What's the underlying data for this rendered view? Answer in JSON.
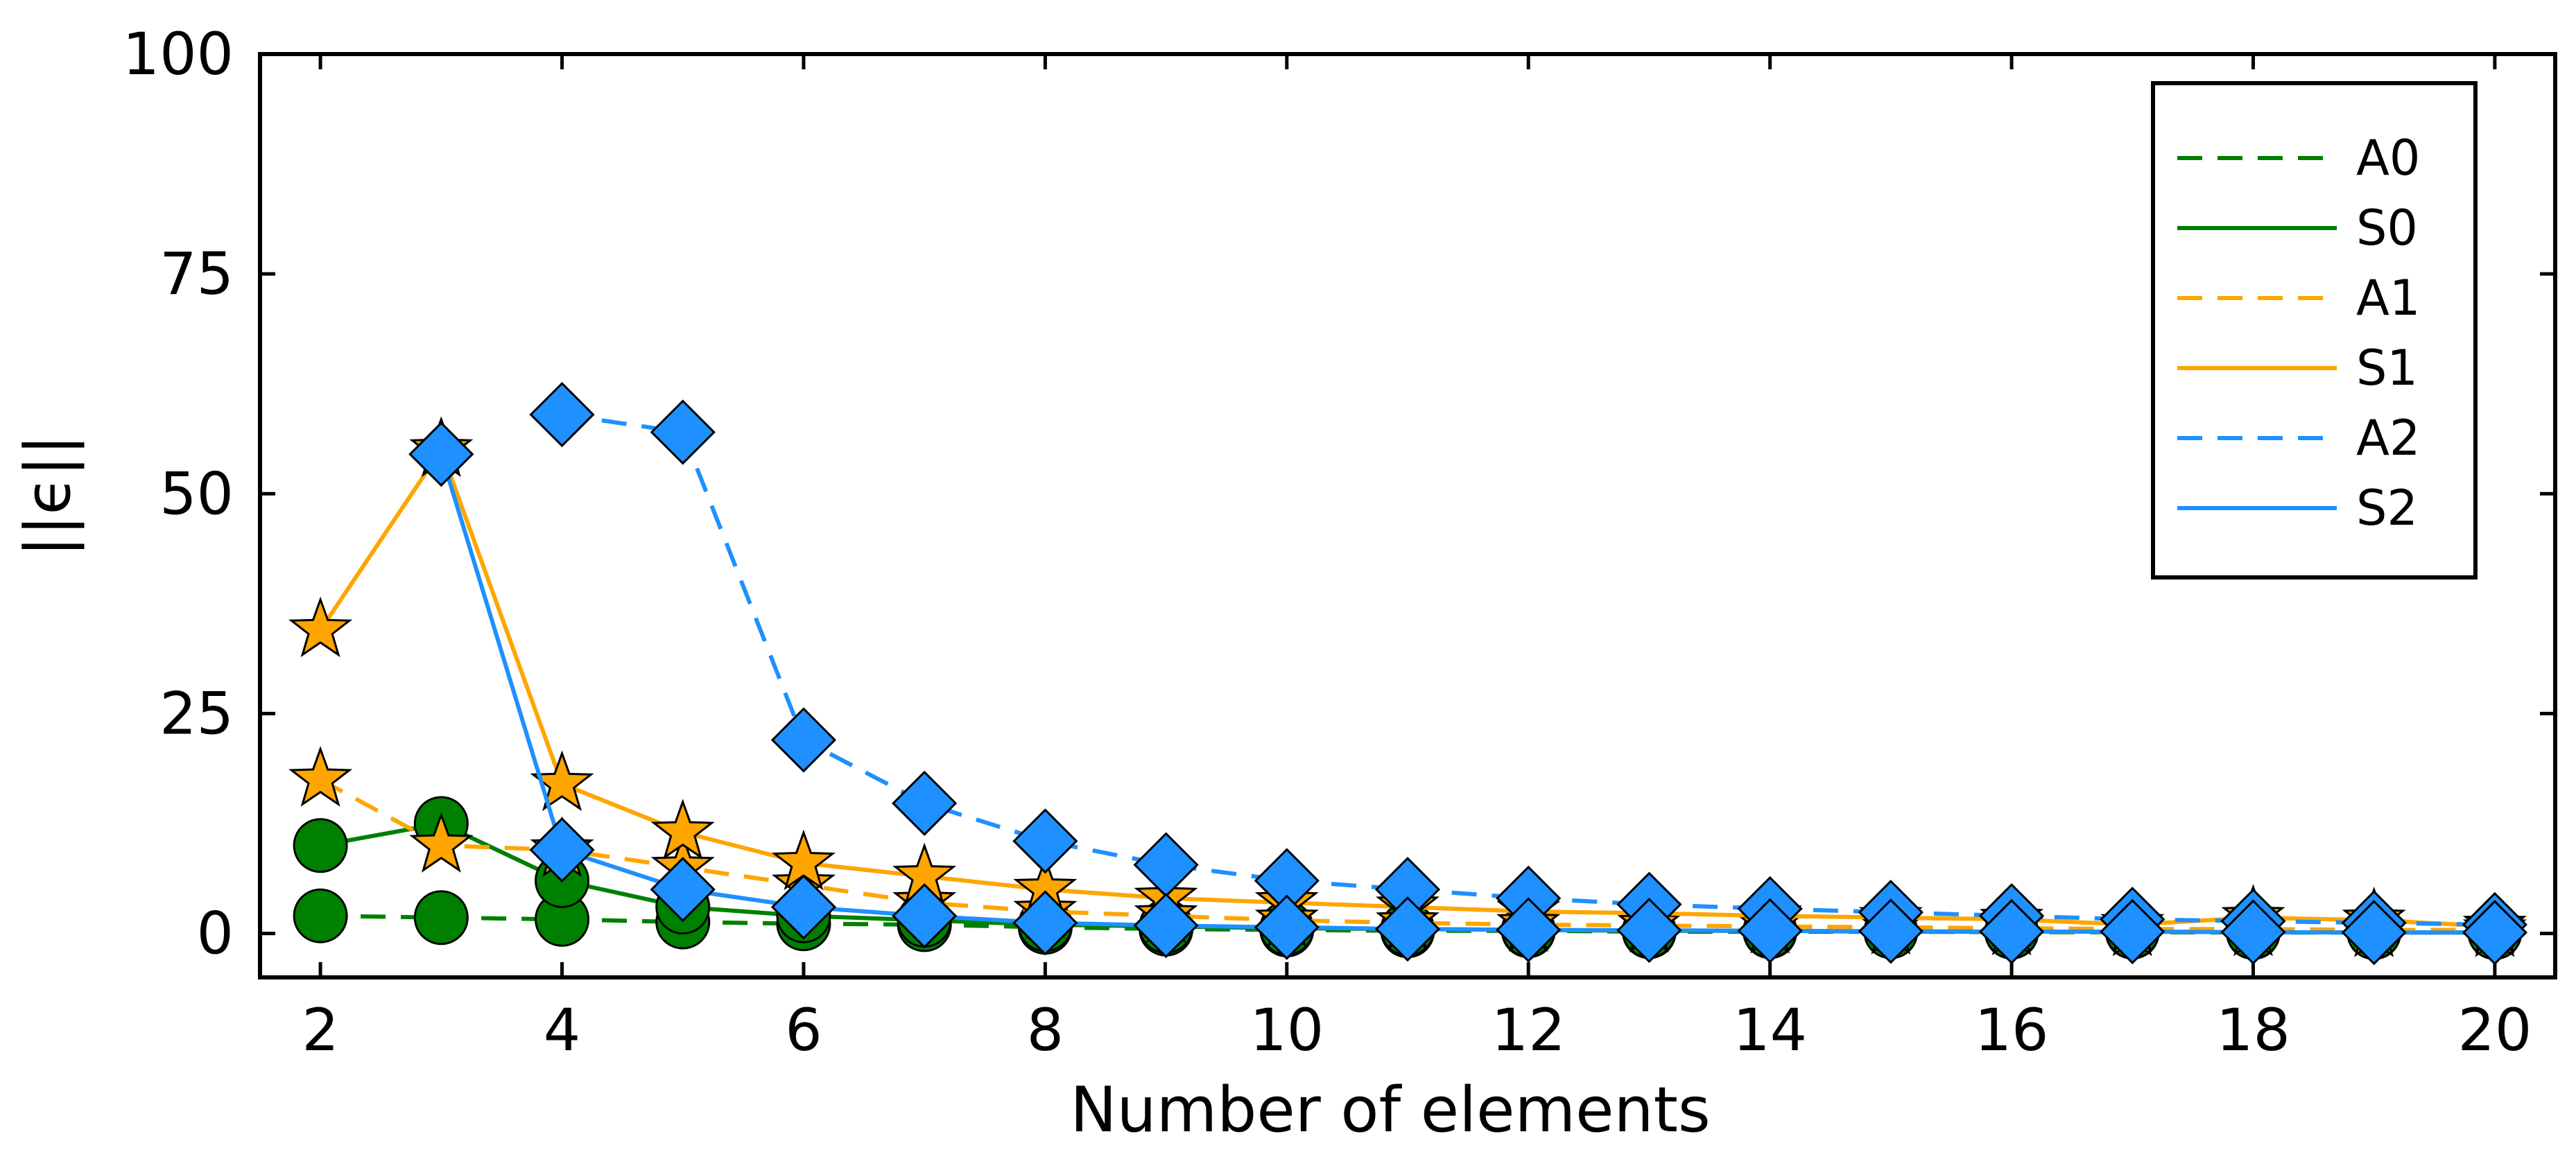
{
  "chart_data": {
    "type": "line",
    "xlabel": "Number of elements",
    "ylabel": "||ϵ||",
    "xlim": [
      1.5,
      20.5
    ],
    "ylim": [
      -5,
      100
    ],
    "xticks": [
      2,
      4,
      6,
      8,
      10,
      12,
      14,
      16,
      18,
      20
    ],
    "yticks": [
      0,
      25,
      50,
      75,
      100
    ],
    "legend_position": "top-right",
    "grid": false,
    "series": [
      {
        "name": "A0",
        "color": "#008000",
        "dash": "dashed",
        "marker": "circle",
        "x": [
          2,
          3,
          4,
          5,
          6,
          7,
          8,
          9,
          10,
          11,
          12,
          13,
          14,
          15,
          16,
          17,
          18,
          19,
          20
        ],
        "y": [
          2.0,
          1.8,
          1.6,
          1.3,
          1.1,
          1.0,
          0.7,
          0.5,
          0.4,
          0.3,
          0.3,
          0.2,
          0.2,
          0.2,
          0.15,
          0.15,
          0.1,
          0.1,
          0.1
        ]
      },
      {
        "name": "S0",
        "color": "#008000",
        "dash": "solid",
        "marker": "circle",
        "x": [
          2,
          3,
          4,
          5,
          6,
          7,
          8,
          9,
          10,
          11,
          12,
          13,
          14,
          15,
          16,
          17,
          18,
          19,
          20
        ],
        "y": [
          10.0,
          12.5,
          6.0,
          3.0,
          2.0,
          1.5,
          1.0,
          0.8,
          0.6,
          0.5,
          0.4,
          0.3,
          0.3,
          0.2,
          0.2,
          0.2,
          0.15,
          0.1,
          0.1
        ]
      },
      {
        "name": "A1",
        "color": "#FFA500",
        "dash": "dashed",
        "marker": "star",
        "x": [
          2,
          3,
          4,
          5,
          6,
          7,
          8,
          9,
          10,
          11,
          12,
          13,
          14,
          15,
          16,
          17,
          18,
          19,
          20
        ],
        "y": [
          17.5,
          10.0,
          9.5,
          7.5,
          5.5,
          3.5,
          2.5,
          2.0,
          1.5,
          1.2,
          1.0,
          0.9,
          0.8,
          0.7,
          0.6,
          0.5,
          0.5,
          0.4,
          0.4
        ]
      },
      {
        "name": "S1",
        "color": "#FFA500",
        "dash": "solid",
        "marker": "star",
        "x": [
          2,
          3,
          4,
          5,
          6,
          7,
          8,
          9,
          10,
          11,
          12,
          13,
          14,
          15,
          16,
          17,
          18,
          19,
          20
        ],
        "y": [
          34.5,
          55.0,
          17.0,
          11.5,
          8.0,
          6.5,
          5.0,
          4.0,
          3.5,
          3.0,
          2.5,
          2.3,
          2.0,
          1.8,
          1.6,
          1.0,
          1.8,
          1.5,
          0.8
        ]
      },
      {
        "name": "A2",
        "color": "#1E90FF",
        "dash": "dashed",
        "marker": "diamond",
        "x": [
          4,
          5,
          6,
          7,
          8,
          9,
          10,
          11,
          12,
          13,
          14,
          15,
          16,
          17,
          18,
          19,
          20
        ],
        "y": [
          59.0,
          57.0,
          22.0,
          14.8,
          10.5,
          7.8,
          6.0,
          5.0,
          4.0,
          3.3,
          2.8,
          2.4,
          2.0,
          1.6,
          1.4,
          1.2,
          1.0
        ]
      },
      {
        "name": "S2",
        "color": "#1E90FF",
        "dash": "solid",
        "marker": "diamond",
        "x": [
          3,
          4,
          5,
          6,
          7,
          8,
          9,
          10,
          11,
          12,
          13,
          14,
          15,
          16,
          17,
          18,
          19,
          20
        ],
        "y": [
          54.5,
          9.5,
          5.0,
          3.0,
          2.0,
          1.2,
          0.9,
          0.7,
          0.5,
          0.4,
          0.35,
          0.3,
          0.25,
          0.2,
          0.2,
          0.15,
          0.1,
          0.1
        ]
      }
    ]
  }
}
